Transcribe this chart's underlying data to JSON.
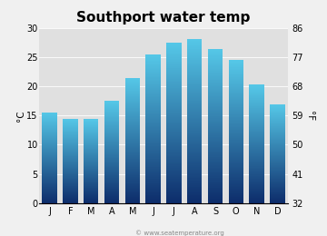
{
  "title": "Southport water temp",
  "months": [
    "J",
    "F",
    "M",
    "A",
    "M",
    "J",
    "J",
    "A",
    "S",
    "O",
    "N",
    "D"
  ],
  "values_c": [
    15.6,
    14.5,
    14.4,
    17.5,
    21.5,
    25.5,
    27.5,
    28.2,
    26.5,
    24.5,
    20.3,
    17.0
  ],
  "ylim_c": [
    0,
    30
  ],
  "yticks_c": [
    0,
    5,
    10,
    15,
    20,
    25,
    30
  ],
  "yticks_f": [
    32,
    41,
    50,
    59,
    68,
    77,
    86
  ],
  "ylabel_left": "°C",
  "ylabel_right": "°F",
  "bar_color_bottom": "#0d2d6b",
  "bar_color_top": "#55c8e8",
  "bg_color": "#f0f0f0",
  "plot_bg_color": "#e0e0e0",
  "watermark": "© www.seatemperature.org",
  "title_fontsize": 11,
  "axis_fontsize": 7.5,
  "tick_fontsize": 7
}
